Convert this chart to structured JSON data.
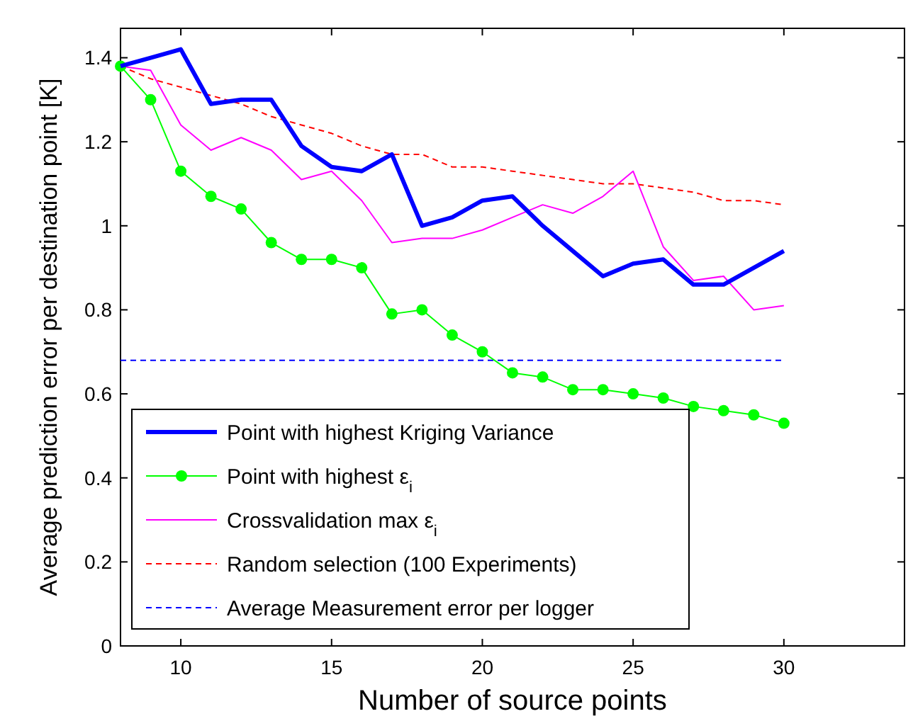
{
  "chart_data": {
    "type": "line",
    "xlabel": "Number of source points",
    "ylabel": "Average prediction error per destination point [K]",
    "x": [
      8,
      9,
      10,
      11,
      12,
      13,
      14,
      15,
      16,
      17,
      18,
      19,
      20,
      21,
      22,
      23,
      24,
      25,
      26,
      27,
      28,
      29,
      30
    ],
    "xlim": [
      8,
      34
    ],
    "xticks": [
      10,
      15,
      20,
      25,
      30
    ],
    "ylim": [
      0,
      1.47
    ],
    "yticks": [
      0,
      {
        "value": 0.2,
        "label": "0.2"
      },
      {
        "value": 0.4,
        "label": "0.4"
      },
      {
        "value": 0.6,
        "label": "0.6"
      },
      {
        "value": 0.8,
        "label": "0.8"
      },
      1,
      {
        "value": 1.2,
        "label": "1.2"
      },
      {
        "value": 1.4,
        "label": "1.4"
      }
    ],
    "grid": false,
    "legend": "bottom left",
    "series": [
      {
        "name": "Point with highest Kriging Variance",
        "color": "#0000ff",
        "marker": "none",
        "line_style": "solid",
        "values": [
          1.38,
          1.4,
          1.42,
          1.29,
          1.3,
          1.3,
          1.19,
          1.14,
          1.13,
          1.17,
          1.0,
          1.02,
          1.06,
          1.07,
          1.0,
          0.94,
          0.88,
          0.91,
          0.92,
          0.86,
          0.86,
          0.9,
          0.94
        ]
      },
      {
        "name": "Point with highest ε$_{i}$",
        "color": "#00ff00",
        "marker": "circle",
        "line_style": "solid",
        "values": [
          1.38,
          1.3,
          1.13,
          1.07,
          1.04,
          0.96,
          0.92,
          0.92,
          0.9,
          0.79,
          0.8,
          0.74,
          0.7,
          0.65,
          0.64,
          0.61,
          0.61,
          0.6,
          0.59,
          0.57,
          0.56,
          0.55,
          0.53
        ]
      },
      {
        "name": "Crossvalidation max ε$_{i}$",
        "color": "#ff00ff",
        "marker": "none",
        "line_style": "solid",
        "values": [
          1.38,
          1.37,
          1.24,
          1.18,
          1.21,
          1.18,
          1.11,
          1.13,
          1.06,
          0.96,
          0.97,
          0.97,
          0.99,
          1.02,
          1.05,
          1.03,
          1.07,
          1.13,
          0.95,
          0.87,
          0.88,
          0.8,
          0.81
        ]
      },
      {
        "name": "Random selection (100 Experiments)",
        "color": "#ff0000",
        "marker": "none",
        "line_style": "dashed",
        "values": [
          1.38,
          1.35,
          1.33,
          1.31,
          1.29,
          1.26,
          1.24,
          1.22,
          1.19,
          1.17,
          1.17,
          1.14,
          1.14,
          1.13,
          1.12,
          1.11,
          1.1,
          1.1,
          1.09,
          1.08,
          1.06,
          1.06,
          1.05
        ]
      },
      {
        "name": "Average Measurement error per logger",
        "color": "#0000ff",
        "marker": "none",
        "line_style": "dashed",
        "x": [
          8,
          30
        ],
        "values": [
          0.68,
          0.68
        ]
      }
    ]
  }
}
